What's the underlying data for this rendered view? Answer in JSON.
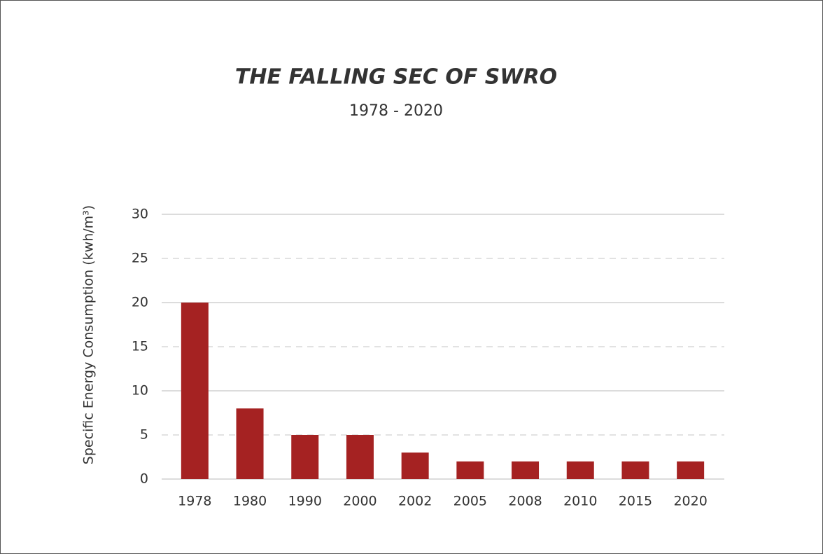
{
  "chart_data": {
    "type": "bar",
    "title": "THE FALLING SEC OF SWRO",
    "subtitle": "1978 - 2020",
    "y_label": "Specific Energy Consumption (kwh/m³)",
    "categories": [
      "1978",
      "1980",
      "1990",
      "2000",
      "2002",
      "2005",
      "2008",
      "2010",
      "2015",
      "2020"
    ],
    "values": [
      20,
      8,
      5,
      5,
      3,
      2,
      2,
      2,
      2,
      2
    ],
    "color": "#a52222",
    "ylim": [
      0,
      30
    ],
    "yticks": [
      0,
      5,
      10,
      15,
      20,
      25,
      30
    ],
    "grid": true
  }
}
